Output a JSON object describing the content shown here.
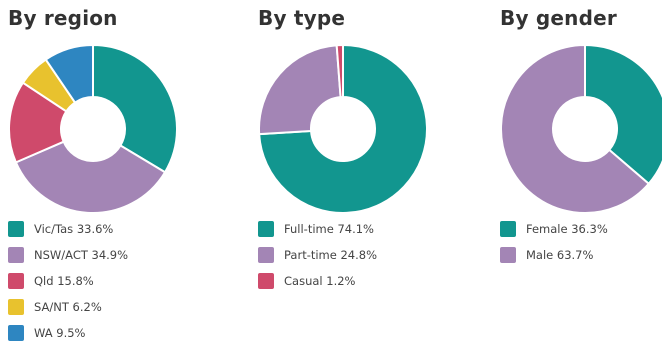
{
  "chart_data": [
    {
      "type": "pie",
      "title": "By region",
      "categories": [
        "Vic/Tas",
        "NSW/ACT",
        "Qld",
        "SA/NT",
        "WA"
      ],
      "values": [
        33.6,
        34.9,
        15.8,
        6.2,
        9.5
      ],
      "legend_labels": [
        "Vic/Tas 33.6%",
        "NSW/ACT 34.9%",
        "Qld 15.8%",
        "SA/NT 6.2%",
        "WA 9.5%"
      ],
      "colors": [
        "#12968f",
        "#a385b5",
        "#cf4a6b",
        "#e8c22e",
        "#2e86c1"
      ],
      "legend": "bottom"
    },
    {
      "type": "pie",
      "title": "By type",
      "categories": [
        "Full-time",
        "Part-time",
        "Casual"
      ],
      "values": [
        74.1,
        24.8,
        1.2
      ],
      "legend_labels": [
        "Full-time 74.1%",
        "Part-time 24.8%",
        "Casual 1.2%"
      ],
      "colors": [
        "#12968f",
        "#a385b5",
        "#cf4a6b"
      ],
      "legend": "bottom"
    },
    {
      "type": "pie",
      "title": "By gender",
      "categories": [
        "Female",
        "Male"
      ],
      "values": [
        36.3,
        63.7
      ],
      "legend_labels": [
        "Female 36.3%",
        "Male 63.7%"
      ],
      "colors": [
        "#12968f",
        "#a385b5"
      ],
      "legend": "bottom"
    }
  ]
}
